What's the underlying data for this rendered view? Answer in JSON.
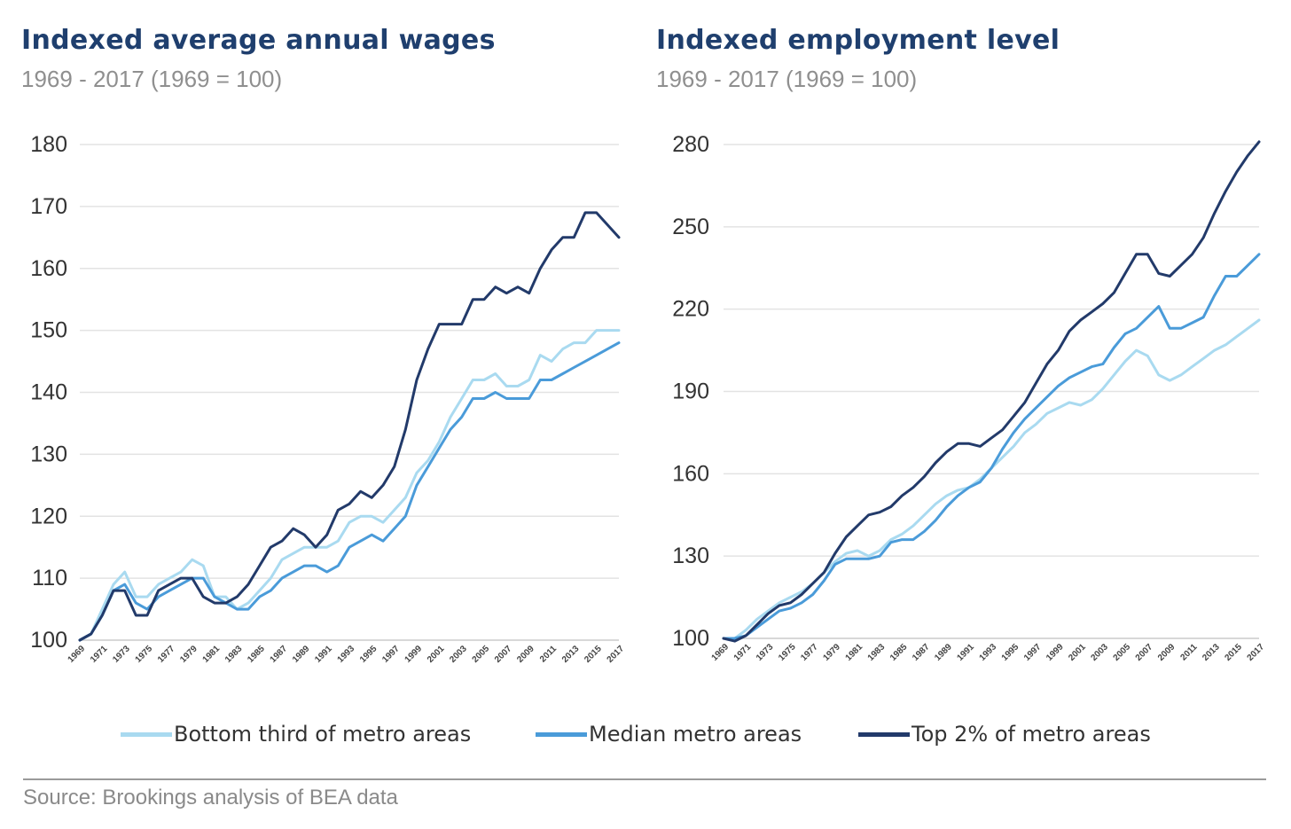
{
  "source": "Source: Brookings analysis of BEA data",
  "colors": {
    "bottom": "#a9daf0",
    "median": "#4a9bd9",
    "top": "#223a6a",
    "grid": "#e3e3e3",
    "text": "#333333"
  },
  "legend": [
    {
      "label": "Bottom third of metro areas",
      "color": "#a9daf0"
    },
    {
      "label": "Median metro areas",
      "color": "#4a9bd9"
    },
    {
      "label": "Top 2% of metro areas",
      "color": "#223a6a"
    }
  ],
  "chart_data": [
    {
      "type": "line",
      "title": "Indexed average annual wages",
      "subtitle": "1969 - 2017 (1969 = 100)",
      "ylim": [
        100,
        180
      ],
      "yticks": [
        100,
        110,
        120,
        130,
        140,
        150,
        160,
        170,
        180
      ],
      "xticks": [
        "1969",
        "1971",
        "1973",
        "1975",
        "1977",
        "1979",
        "1981",
        "1983",
        "1985",
        "1987",
        "1989",
        "1991",
        "1993",
        "1995",
        "1997",
        "1999",
        "2001",
        "2003",
        "2005",
        "2007",
        "2009",
        "2011",
        "2013",
        "2015",
        "2017"
      ],
      "x": [
        1969,
        1970,
        1971,
        1972,
        1973,
        1974,
        1975,
        1976,
        1977,
        1978,
        1979,
        1980,
        1981,
        1982,
        1983,
        1984,
        1985,
        1986,
        1987,
        1988,
        1989,
        1990,
        1991,
        1992,
        1993,
        1994,
        1995,
        1996,
        1997,
        1998,
        1999,
        2000,
        2001,
        2002,
        2003,
        2004,
        2005,
        2006,
        2007,
        2008,
        2009,
        2010,
        2011,
        2012,
        2013,
        2014,
        2015,
        2016,
        2017
      ],
      "grid": true,
      "series": [
        {
          "name": "Bottom third of metro areas",
          "color": "#a9daf0",
          "values": [
            100,
            101,
            105,
            109,
            111,
            107,
            107,
            109,
            110,
            111,
            113,
            112,
            107,
            107,
            105,
            106,
            108,
            110,
            113,
            114,
            115,
            115,
            115,
            116,
            119,
            120,
            120,
            119,
            121,
            123,
            127,
            129,
            132,
            136,
            139,
            142,
            142,
            143,
            141,
            141,
            142,
            146,
            145,
            147,
            148,
            148,
            150,
            150,
            150
          ]
        },
        {
          "name": "Median metro areas",
          "color": "#4a9bd9",
          "values": [
            100,
            101,
            104,
            108,
            109,
            106,
            105,
            107,
            108,
            109,
            110,
            110,
            107,
            106,
            105,
            105,
            107,
            108,
            110,
            111,
            112,
            112,
            111,
            112,
            115,
            116,
            117,
            116,
            118,
            120,
            125,
            128,
            131,
            134,
            136,
            139,
            139,
            140,
            139,
            139,
            139,
            142,
            142,
            143,
            144,
            145,
            146,
            147,
            148
          ]
        },
        {
          "name": "Top 2% of metro areas",
          "color": "#223a6a",
          "values": [
            100,
            101,
            104,
            108,
            108,
            104,
            104,
            108,
            109,
            110,
            110,
            107,
            106,
            106,
            107,
            109,
            112,
            115,
            116,
            118,
            117,
            115,
            117,
            121,
            122,
            124,
            123,
            125,
            128,
            134,
            142,
            147,
            151,
            151,
            151,
            155,
            155,
            157,
            156,
            157,
            156,
            160,
            163,
            165,
            165,
            169,
            169,
            167,
            165
          ]
        }
      ]
    },
    {
      "type": "line",
      "title": "Indexed employment level",
      "subtitle": "1969 - 2017 (1969 = 100)",
      "ylim": [
        100,
        280
      ],
      "yticks": [
        100,
        130,
        160,
        190,
        220,
        250,
        280
      ],
      "xticks": [
        "1969",
        "1971",
        "1973",
        "1975",
        "1977",
        "1979",
        "1981",
        "1983",
        "1985",
        "1987",
        "1989",
        "1991",
        "1993",
        "1995",
        "1997",
        "1999",
        "2001",
        "2003",
        "2005",
        "2007",
        "2009",
        "2011",
        "2013",
        "2015",
        "2017"
      ],
      "x": [
        1969,
        1970,
        1971,
        1972,
        1973,
        1974,
        1975,
        1976,
        1977,
        1978,
        1979,
        1980,
        1981,
        1982,
        1983,
        1984,
        1985,
        1986,
        1987,
        1988,
        1989,
        1990,
        1991,
        1992,
        1993,
        1994,
        1995,
        1996,
        1997,
        1998,
        1999,
        2000,
        2001,
        2002,
        2003,
        2004,
        2005,
        2006,
        2007,
        2008,
        2009,
        2010,
        2011,
        2012,
        2013,
        2014,
        2015,
        2016,
        2017
      ],
      "grid": true,
      "series": [
        {
          "name": "Bottom third of metro areas",
          "color": "#a9daf0",
          "values": [
            100,
            100,
            103,
            107,
            110,
            113,
            115,
            117,
            120,
            124,
            128,
            131,
            132,
            130,
            132,
            136,
            138,
            141,
            145,
            149,
            152,
            154,
            155,
            158,
            162,
            166,
            170,
            175,
            178,
            182,
            184,
            186,
            185,
            187,
            191,
            196,
            201,
            205,
            203,
            196,
            194,
            196,
            199,
            202,
            205,
            207,
            210,
            213,
            216
          ]
        },
        {
          "name": "Median metro areas",
          "color": "#4a9bd9",
          "values": [
            100,
            100,
            101,
            104,
            107,
            110,
            111,
            113,
            116,
            121,
            127,
            129,
            129,
            129,
            130,
            135,
            136,
            136,
            139,
            143,
            148,
            152,
            155,
            157,
            162,
            169,
            175,
            180,
            184,
            188,
            192,
            195,
            197,
            199,
            200,
            206,
            211,
            213,
            217,
            221,
            213,
            213,
            215,
            217,
            225,
            232,
            232,
            236,
            240
          ]
        },
        {
          "name": "Top 2% of metro areas",
          "color": "#223a6a",
          "values": [
            100,
            99,
            101,
            105,
            109,
            112,
            113,
            116,
            120,
            124,
            131,
            137,
            141,
            145,
            146,
            148,
            152,
            155,
            159,
            164,
            168,
            171,
            171,
            170,
            173,
            176,
            181,
            186,
            193,
            200,
            205,
            212,
            216,
            219,
            222,
            226,
            233,
            240,
            240,
            233,
            232,
            236,
            240,
            246,
            255,
            263,
            270,
            276,
            281
          ]
        }
      ]
    }
  ]
}
